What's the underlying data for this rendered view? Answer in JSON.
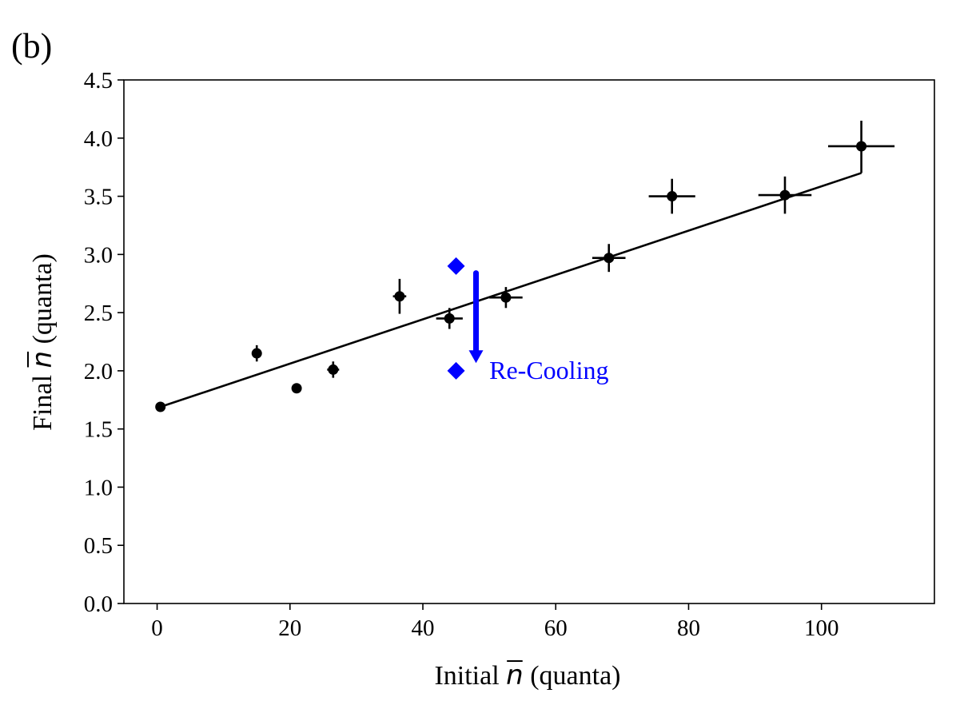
{
  "panel_label": "(b)",
  "chart_data": {
    "type": "scatter",
    "title": "",
    "xlabel": {
      "prefix": "Initial ",
      "symbol": "n",
      "suffix": " (quanta)"
    },
    "ylabel": {
      "prefix": "Final ",
      "symbol": "n",
      "suffix": " (quanta)"
    },
    "xlim": [
      -5,
      117
    ],
    "ylim": [
      0.0,
      4.5
    ],
    "xticks": [
      0,
      20,
      40,
      60,
      80,
      100
    ],
    "xtick_labels": [
      "0",
      "20",
      "40",
      "60",
      "80",
      "100"
    ],
    "yticks": [
      0.0,
      0.5,
      1.0,
      1.5,
      2.0,
      2.5,
      3.0,
      3.5,
      4.0,
      4.5
    ],
    "ytick_labels": [
      "0.0",
      "0.5",
      "1.0",
      "1.5",
      "2.0",
      "2.5",
      "3.0",
      "3.5",
      "4.0",
      "4.5"
    ],
    "grid": false,
    "series": [
      {
        "name": "measurements",
        "color": "#000000",
        "marker": "circle",
        "points": [
          {
            "x": 0.5,
            "y": 1.69,
            "xerr": 0.5,
            "yerr": 0.03
          },
          {
            "x": 15.0,
            "y": 2.15,
            "xerr": 0.6,
            "yerr": 0.07
          },
          {
            "x": 21.0,
            "y": 1.85,
            "xerr": 0.6,
            "yerr": 0.04
          },
          {
            "x": 26.5,
            "y": 2.01,
            "xerr": 0.9,
            "yerr": 0.07
          },
          {
            "x": 36.5,
            "y": 2.64,
            "xerr": 1.0,
            "yerr": 0.15
          },
          {
            "x": 44.0,
            "y": 2.45,
            "xerr": 2.0,
            "yerr": 0.09
          },
          {
            "x": 52.5,
            "y": 2.63,
            "xerr": 2.5,
            "yerr": 0.09
          },
          {
            "x": 68.0,
            "y": 2.97,
            "xerr": 2.5,
            "yerr": 0.12
          },
          {
            "x": 77.5,
            "y": 3.5,
            "xerr": 3.5,
            "yerr": 0.15
          },
          {
            "x": 94.5,
            "y": 3.51,
            "xerr": 4.0,
            "yerr": 0.16
          },
          {
            "x": 106.0,
            "y": 3.93,
            "xerr": 5.0,
            "yerr": 0.22
          }
        ]
      },
      {
        "name": "re-cooling",
        "color": "#0000ff",
        "marker": "diamond",
        "points": [
          {
            "x": 45.0,
            "y": 2.9
          },
          {
            "x": 45.0,
            "y": 2.0
          }
        ]
      }
    ],
    "fit_line": {
      "x": [
        0.5,
        106.0
      ],
      "y": [
        1.69,
        3.7
      ],
      "color": "#000000"
    },
    "annotation": {
      "text": "Re-Cooling",
      "color": "#0000ff",
      "arrow_x": 48.0,
      "arrow_from_y": 2.84,
      "arrow_to_y": 2.08,
      "text_x": 50.0,
      "text_y": 2.0
    }
  }
}
